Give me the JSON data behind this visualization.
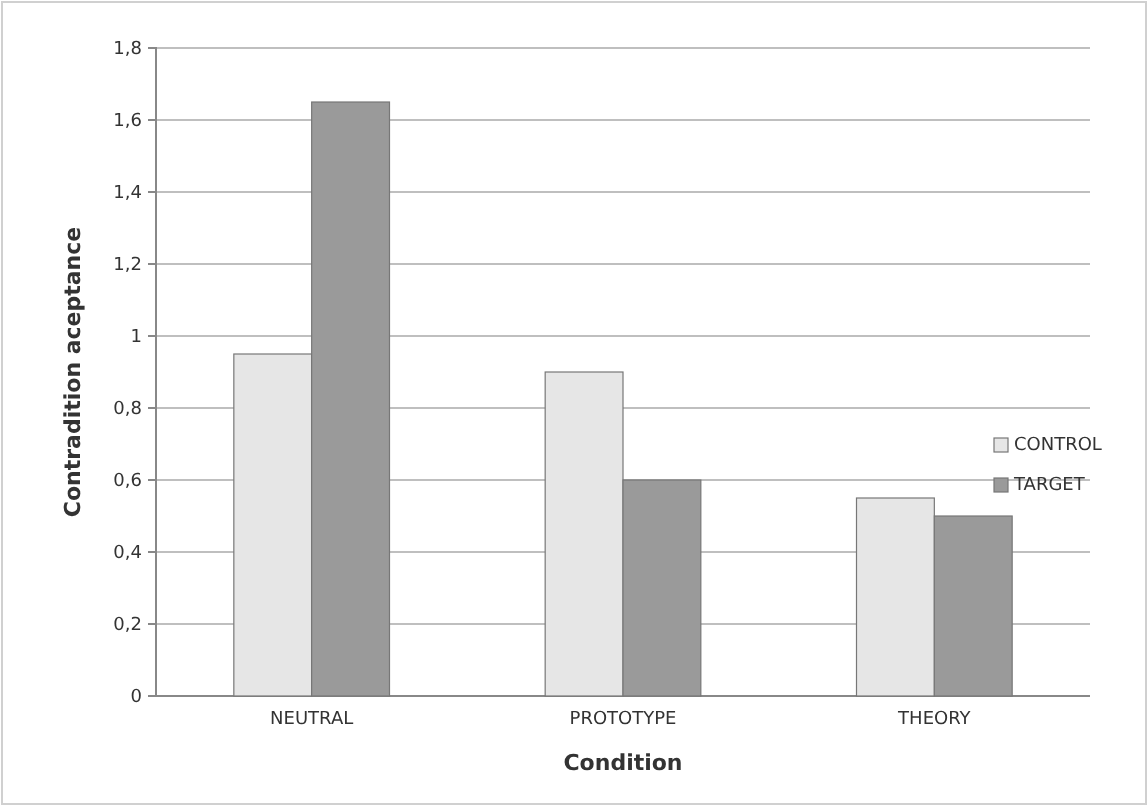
{
  "chart_data": {
    "type": "bar",
    "xlabel": "Condition",
    "ylabel": "Contradition aceptance",
    "categories": [
      "NEUTRAL",
      "PROTOTYPE",
      "THEORY"
    ],
    "series": [
      {
        "name": "CONTROL",
        "color": "#e6e6e6",
        "values": [
          0.95,
          0.9,
          0.55
        ]
      },
      {
        "name": "TARGET",
        "color": "#9a9a9a",
        "values": [
          1.65,
          0.6,
          0.5
        ]
      }
    ],
    "ylim": [
      0,
      1.8
    ],
    "yticks": [
      0,
      {
        "value": 0.2,
        "label": "0,2"
      },
      {
        "value": 0.4,
        "label": "0,4"
      },
      {
        "value": 0.6,
        "label": "0,6"
      },
      {
        "value": 0.8,
        "label": "0,8"
      },
      1,
      {
        "value": 1.2,
        "label": "1,2"
      },
      {
        "value": 1.4,
        "label": "1,4"
      },
      {
        "value": 1.6,
        "label": "1,6"
      },
      {
        "value": 1.8,
        "label": "1,8"
      }
    ],
    "grid": "y",
    "legend": "right"
  }
}
